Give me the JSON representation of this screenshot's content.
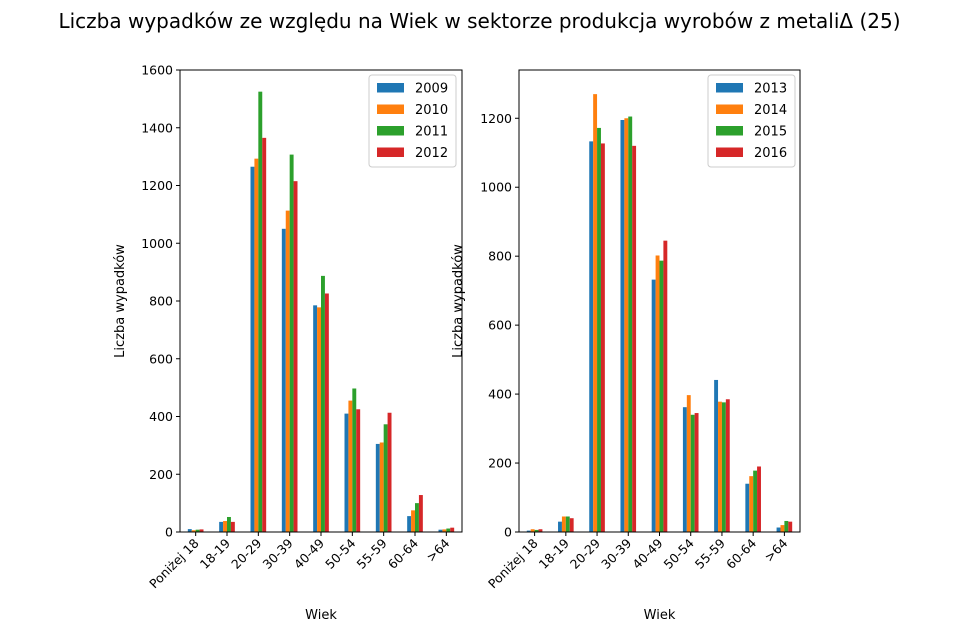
{
  "chart_title": "Liczba wypadków ze względu na Wiek w sektorze produkcja wyrobów z metaliΔ (25)",
  "colors": [
    "#1f77b4",
    "#ff7f0e",
    "#2ca02c",
    "#d62728"
  ],
  "chart_data": [
    {
      "type": "bar",
      "xlabel": "Wiek",
      "ylabel": "Liczba wypadków",
      "categories": [
        "Poniżej 18",
        "18-19",
        "20-29",
        "30-39",
        "40-49",
        "50-54",
        "55-59",
        "60-64",
        ">64"
      ],
      "ylim": [
        0,
        1600
      ],
      "yticks": [
        0,
        200,
        400,
        600,
        800,
        1000,
        1200,
        1400,
        1600
      ],
      "legend_position": "top-right",
      "series": [
        {
          "name": "2009",
          "values": [
            10,
            35,
            1265,
            1050,
            785,
            410,
            305,
            55,
            8
          ]
        },
        {
          "name": "2010",
          "values": [
            6,
            38,
            1293,
            1113,
            778,
            455,
            310,
            75,
            9
          ]
        },
        {
          "name": "2011",
          "values": [
            8,
            52,
            1525,
            1307,
            887,
            497,
            373,
            100,
            12
          ]
        },
        {
          "name": "2012",
          "values": [
            9,
            35,
            1365,
            1215,
            826,
            425,
            413,
            128,
            15
          ]
        }
      ]
    },
    {
      "type": "bar",
      "xlabel": "Wiek",
      "ylabel": "Liczba wypadków",
      "categories": [
        "Poniżej 18",
        "18-19",
        "20-29",
        "30-39",
        "40-49",
        "50-54",
        "55-59",
        "60-64",
        ">64"
      ],
      "ylim": [
        0,
        1340
      ],
      "yticks": [
        0,
        200,
        400,
        600,
        800,
        1000,
        1200
      ],
      "legend_position": "top-right",
      "series": [
        {
          "name": "2013",
          "values": [
            4,
            30,
            1133,
            1195,
            732,
            362,
            441,
            140,
            13
          ]
        },
        {
          "name": "2014",
          "values": [
            8,
            45,
            1270,
            1200,
            802,
            397,
            378,
            162,
            20
          ]
        },
        {
          "name": "2015",
          "values": [
            6,
            45,
            1172,
            1205,
            787,
            340,
            376,
            178,
            32
          ]
        },
        {
          "name": "2016",
          "values": [
            8,
            40,
            1127,
            1120,
            845,
            345,
            385,
            190,
            30
          ]
        }
      ]
    }
  ]
}
